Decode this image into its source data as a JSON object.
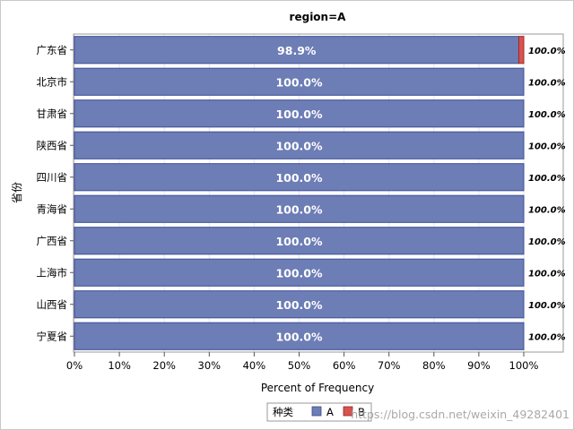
{
  "chart_data": {
    "type": "bar",
    "orientation": "horizontal",
    "stacked": true,
    "title": "region=A",
    "xlabel": "Percent of Frequency",
    "ylabel": "省份",
    "xlim": [
      0,
      100
    ],
    "xticks": [
      "0%",
      "10%",
      "20%",
      "30%",
      "40%",
      "50%",
      "60%",
      "70%",
      "80%",
      "90%",
      "100%"
    ],
    "grid": true,
    "categories": [
      "广东省",
      "北京市",
      "甘肃省",
      "陕西省",
      "四川省",
      "青海省",
      "广西省",
      "上海市",
      "山西省",
      "宁夏省"
    ],
    "series": [
      {
        "name": "A",
        "color": "#6d7db5",
        "values": [
          98.9,
          100,
          100,
          100,
          100,
          100,
          100,
          100,
          100,
          100
        ]
      },
      {
        "name": "B",
        "color": "#d9534f",
        "values": [
          1.1,
          0,
          0,
          0,
          0,
          0,
          0,
          0,
          0,
          0
        ]
      }
    ],
    "bar_labels": [
      "98.9%",
      "100.0%",
      "100.0%",
      "100.0%",
      "100.0%",
      "100.0%",
      "100.0%",
      "100.0%",
      "100.0%",
      "100.0%"
    ],
    "total_labels": [
      "100.0%",
      "100.0%",
      "100.0%",
      "100.0%",
      "100.0%",
      "100.0%",
      "100.0%",
      "100.0%",
      "100.0%",
      "100.0%"
    ],
    "legend": {
      "title": "种类",
      "position": "bottom",
      "items": [
        "A",
        "B"
      ]
    },
    "watermark": "https://blog.csdn.net/weixin_49282401"
  }
}
